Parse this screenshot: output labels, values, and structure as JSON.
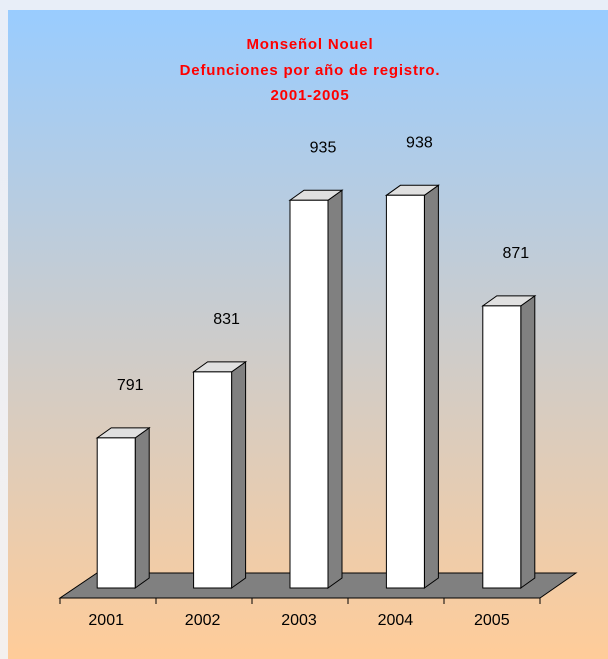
{
  "chart_data": {
    "type": "bar3d",
    "title": [
      "Monseñol Nouel",
      "Defunciones por año de registro.",
      "2001-2005"
    ],
    "categories": [
      "2001",
      "2002",
      "2003",
      "2004",
      "2005"
    ],
    "values": [
      791,
      831,
      935,
      938,
      871
    ],
    "color": "#ffffff",
    "ylim": [
      700,
      1000
    ]
  }
}
